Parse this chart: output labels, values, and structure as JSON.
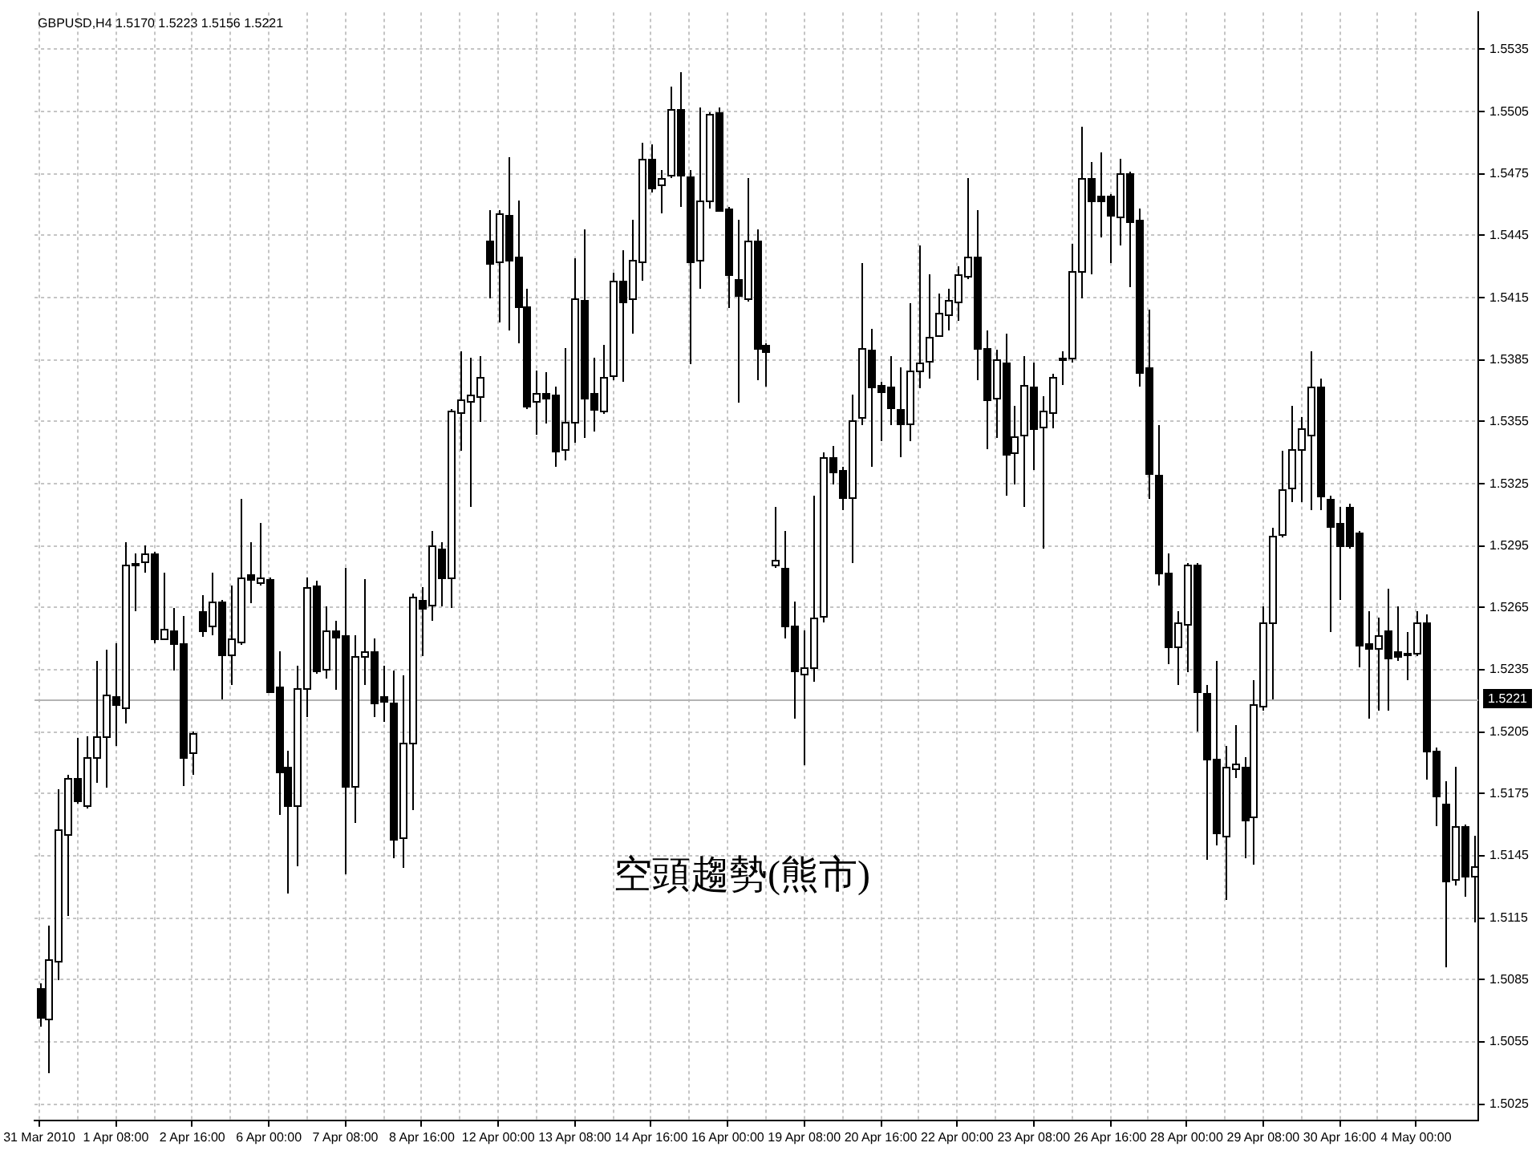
{
  "chart_data": {
    "type": "candlestick",
    "title": "GBPUSD,H4 1.5170 1.5223 1.5156 1.5221",
    "color": "#000000",
    "categories": [
      "31 Mar 2010",
      null,
      null,
      null,
      null,
      null,
      null,
      null,
      "1 Apr 08:00",
      null,
      null,
      null,
      null,
      null,
      null,
      null,
      "2 Apr 16:00",
      null,
      null,
      null,
      null,
      null,
      null,
      null,
      "6 Apr 00:00",
      null,
      null,
      null,
      null,
      null,
      null,
      null,
      "7 Apr 08:00",
      null,
      null,
      null,
      null,
      null,
      null,
      null,
      "8 Apr 16:00",
      null,
      null,
      null,
      null,
      null,
      null,
      null,
      "12 Apr 00:00",
      null,
      null,
      null,
      null,
      null,
      null,
      null,
      "13 Apr 08:00",
      null,
      null,
      null,
      null,
      null,
      null,
      null,
      "14 Apr 16:00",
      null,
      null,
      null,
      null,
      null,
      null,
      null,
      "16 Apr 00:00",
      null,
      null,
      null,
      null,
      null,
      null,
      null,
      "19 Apr 08:00",
      null,
      null,
      null,
      null,
      null,
      null,
      null,
      "20 Apr 16:00",
      null,
      null,
      null,
      null,
      null,
      null,
      null,
      "22 Apr 00:00",
      null,
      null,
      null,
      null,
      null,
      null,
      null,
      "23 Apr 08:00",
      null,
      null,
      null,
      null,
      null,
      null,
      null,
      "26 Apr 16:00",
      null,
      null,
      null,
      null,
      null,
      null,
      null,
      "28 Apr 00:00",
      null,
      null,
      null,
      null,
      null,
      null,
      null,
      "29 Apr 08:00",
      null,
      null,
      null,
      null,
      null,
      null,
      null,
      "30 Apr 16:00",
      null,
      null,
      null,
      null,
      null,
      null,
      null,
      "4 May 00:00",
      null,
      null,
      null,
      null,
      null,
      null
    ],
    "ohlc": [
      [
        1.5081,
        1.5083,
        1.5062,
        1.5067
      ],
      [
        1.5066,
        1.5111,
        1.504,
        1.5095
      ],
      [
        1.5094,
        1.5177,
        1.5085,
        1.5158
      ],
      [
        1.5156,
        1.5184,
        1.5116,
        1.5183
      ],
      [
        1.5183,
        1.5202,
        1.517,
        1.5172
      ],
      [
        1.517,
        1.5203,
        1.5168,
        1.5193
      ],
      [
        1.5193,
        1.5239,
        1.518,
        1.5203
      ],
      [
        1.5203,
        1.5245,
        1.5178,
        1.5223
      ],
      [
        1.5222,
        1.5248,
        1.5198,
        1.5218
      ],
      [
        1.5217,
        1.5297,
        1.5209,
        1.5286
      ],
      [
        1.5286,
        1.5291,
        1.5263,
        1.5287
      ],
      [
        1.5287,
        1.5295,
        1.5282,
        1.5291
      ],
      [
        1.5291,
        1.5292,
        1.5248,
        1.525
      ],
      [
        1.525,
        1.5282,
        1.5249,
        1.5255
      ],
      [
        1.5254,
        1.5265,
        1.5235,
        1.5248
      ],
      [
        1.5248,
        1.5261,
        1.5179,
        1.5193
      ],
      [
        1.5195,
        1.5205,
        1.5184,
        1.5204
      ],
      [
        1.5263,
        1.5271,
        1.5251,
        1.5254
      ],
      [
        1.5256,
        1.5282,
        1.5252,
        1.5268
      ],
      [
        1.5268,
        1.5269,
        1.5221,
        1.5242
      ],
      [
        1.5242,
        1.5276,
        1.5228,
        1.525
      ],
      [
        1.5249,
        1.5318,
        1.5247,
        1.528
      ],
      [
        1.5281,
        1.5297,
        1.5267,
        1.5279
      ],
      [
        1.5278,
        1.5306,
        1.5276,
        1.528
      ],
      [
        1.5279,
        1.528,
        1.5224,
        1.5225
      ],
      [
        1.5227,
        1.5244,
        1.5165,
        1.5186
      ],
      [
        1.5188,
        1.5196,
        1.5127,
        1.5169
      ],
      [
        1.5169,
        1.5237,
        1.514,
        1.5226
      ],
      [
        1.5226,
        1.528,
        1.5212,
        1.5275
      ],
      [
        1.5276,
        1.5278,
        1.5233,
        1.5235
      ],
      [
        1.5235,
        1.5266,
        1.5231,
        1.5254
      ],
      [
        1.5254,
        1.5259,
        1.5225,
        1.5251
      ],
      [
        1.5252,
        1.5284,
        1.5136,
        1.5179
      ],
      [
        1.5179,
        1.5252,
        1.5161,
        1.5242
      ],
      [
        1.5242,
        1.5279,
        1.5228,
        1.5244
      ],
      [
        1.5244,
        1.525,
        1.5212,
        1.5219
      ],
      [
        1.5222,
        1.5237,
        1.521,
        1.522
      ],
      [
        1.5219,
        1.5235,
        1.5144,
        1.5153
      ],
      [
        1.5154,
        1.5232,
        1.5139,
        1.52
      ],
      [
        1.5199,
        1.5272,
        1.5167,
        1.527
      ],
      [
        1.5269,
        1.5275,
        1.5242,
        1.5265
      ],
      [
        1.5266,
        1.5302,
        1.5259,
        1.5295
      ],
      [
        1.5294,
        1.5297,
        1.5266,
        1.528
      ],
      [
        1.5279,
        1.5361,
        1.5265,
        1.536
      ],
      [
        1.536,
        1.5389,
        1.5341,
        1.5366
      ],
      [
        1.5365,
        1.5386,
        1.5314,
        1.5368
      ],
      [
        1.5368,
        1.5387,
        1.5355,
        1.5377
      ],
      [
        1.5443,
        1.5457,
        1.5415,
        1.5432
      ],
      [
        1.5433,
        1.5457,
        1.5403,
        1.5456
      ],
      [
        1.5455,
        1.5483,
        1.5399,
        1.5433
      ],
      [
        1.5435,
        1.5462,
        1.5393,
        1.5411
      ],
      [
        1.5411,
        1.5419,
        1.5361,
        1.5363
      ],
      [
        1.5365,
        1.538,
        1.5349,
        1.5369
      ],
      [
        1.5369,
        1.5379,
        1.5354,
        1.5367
      ],
      [
        1.5368,
        1.5372,
        1.5333,
        1.5341
      ],
      [
        1.5342,
        1.5391,
        1.5336,
        1.5355
      ],
      [
        1.5355,
        1.5434,
        1.5345,
        1.5415
      ],
      [
        1.5414,
        1.5448,
        1.5347,
        1.5367
      ],
      [
        1.5369,
        1.5386,
        1.535,
        1.5361
      ],
      [
        1.5361,
        1.5392,
        1.5359,
        1.5377
      ],
      [
        1.5377,
        1.5427,
        1.5375,
        1.5423
      ],
      [
        1.5423,
        1.5438,
        1.5374,
        1.5413
      ],
      [
        1.5414,
        1.5453,
        1.5398,
        1.5433
      ],
      [
        1.5432,
        1.549,
        1.5423,
        1.5482
      ],
      [
        1.5482,
        1.5489,
        1.5466,
        1.5468
      ],
      [
        1.547,
        1.5477,
        1.5456,
        1.5473
      ],
      [
        1.5474,
        1.5517,
        1.5473,
        1.5506
      ],
      [
        1.5506,
        1.5524,
        1.5459,
        1.5474
      ],
      [
        1.5474,
        1.5477,
        1.5383,
        1.5433
      ],
      [
        1.5433,
        1.5507,
        1.5419,
        1.5462
      ],
      [
        1.5462,
        1.5505,
        1.5458,
        1.5504
      ],
      [
        1.5505,
        1.5507,
        1.5457,
        1.5458
      ],
      [
        1.5458,
        1.5459,
        1.541,
        1.5426
      ],
      [
        1.5424,
        1.5453,
        1.5364,
        1.5416
      ],
      [
        1.5415,
        1.5473,
        1.5413,
        1.5443
      ],
      [
        1.5443,
        1.5448,
        1.5375,
        1.5391
      ],
      [
        1.5392,
        1.5393,
        1.5372,
        1.5389
      ],
      [
        1.5286,
        1.5314,
        1.5284,
        1.5288
      ],
      [
        1.5284,
        1.5302,
        1.525,
        1.5256
      ],
      [
        1.5256,
        1.5268,
        1.5211,
        1.5234
      ],
      [
        1.5233,
        1.5254,
        1.5189,
        1.5236
      ],
      [
        1.5236,
        1.5319,
        1.5229,
        1.526
      ],
      [
        1.5261,
        1.534,
        1.5258,
        1.5338
      ],
      [
        1.5338,
        1.5343,
        1.5325,
        1.5331
      ],
      [
        1.5332,
        1.5333,
        1.5312,
        1.5319
      ],
      [
        1.5319,
        1.5368,
        1.5287,
        1.5356
      ],
      [
        1.5358,
        1.5432,
        1.5353,
        1.5391
      ],
      [
        1.539,
        1.54,
        1.5333,
        1.5372
      ],
      [
        1.5373,
        1.5374,
        1.5346,
        1.537
      ],
      [
        1.5372,
        1.5387,
        1.5353,
        1.5362
      ],
      [
        1.5361,
        1.5381,
        1.5338,
        1.5354
      ],
      [
        1.5354,
        1.5412,
        1.5346,
        1.538
      ],
      [
        1.538,
        1.544,
        1.5371,
        1.5384
      ],
      [
        1.5384,
        1.5426,
        1.5376,
        1.5396
      ],
      [
        1.5397,
        1.5417,
        1.5396,
        1.5408
      ],
      [
        1.5407,
        1.5419,
        1.5399,
        1.5414
      ],
      [
        1.5413,
        1.543,
        1.5404,
        1.5426
      ],
      [
        1.5426,
        1.5473,
        1.5424,
        1.5435
      ],
      [
        1.5435,
        1.5457,
        1.5375,
        1.5391
      ],
      [
        1.5391,
        1.5399,
        1.5342,
        1.5366
      ],
      [
        1.5366,
        1.539,
        1.5347,
        1.5385
      ],
      [
        1.5384,
        1.5398,
        1.5319,
        1.534
      ],
      [
        1.534,
        1.5363,
        1.5325,
        1.5348
      ],
      [
        1.5349,
        1.5387,
        1.5314,
        1.5373
      ],
      [
        1.5372,
        1.5384,
        1.5332,
        1.5352
      ],
      [
        1.5352,
        1.5367,
        1.5294,
        1.536
      ],
      [
        1.536,
        1.5378,
        1.5352,
        1.5377
      ],
      [
        1.5386,
        1.5389,
        1.5373,
        1.5385
      ],
      [
        1.5386,
        1.5441,
        1.5384,
        1.5428
      ],
      [
        1.5428,
        1.5498,
        1.5415,
        1.5473
      ],
      [
        1.5473,
        1.5481,
        1.5426,
        1.5462
      ],
      [
        1.5464,
        1.5485,
        1.5444,
        1.5462
      ],
      [
        1.5464,
        1.5465,
        1.5432,
        1.5455
      ],
      [
        1.5454,
        1.5482,
        1.544,
        1.5475
      ],
      [
        1.5475,
        1.5476,
        1.542,
        1.5452
      ],
      [
        1.5453,
        1.5458,
        1.5372,
        1.5379
      ],
      [
        1.5381,
        1.5409,
        1.5318,
        1.533
      ],
      [
        1.5329,
        1.5353,
        1.5276,
        1.5282
      ],
      [
        1.5282,
        1.5291,
        1.5238,
        1.5246
      ],
      [
        1.5246,
        1.5263,
        1.5228,
        1.5258
      ],
      [
        1.5257,
        1.5287,
        1.5234,
        1.5286
      ],
      [
        1.5286,
        1.5287,
        1.5205,
        1.5225
      ],
      [
        1.5224,
        1.5228,
        1.5143,
        1.5192
      ],
      [
        1.5192,
        1.5239,
        1.515,
        1.5156
      ],
      [
        1.5155,
        1.5198,
        1.5124,
        1.5188
      ],
      [
        1.5188,
        1.5208,
        1.5183,
        1.519
      ],
      [
        1.5188,
        1.5193,
        1.5144,
        1.5162
      ],
      [
        1.5164,
        1.523,
        1.5141,
        1.5218
      ],
      [
        1.5218,
        1.5266,
        1.5215,
        1.5258
      ],
      [
        1.5258,
        1.5304,
        1.5221,
        1.53
      ],
      [
        1.53,
        1.5341,
        1.5299,
        1.5322
      ],
      [
        1.5323,
        1.5363,
        1.5316,
        1.5342
      ],
      [
        1.5342,
        1.5357,
        1.5316,
        1.5352
      ],
      [
        1.5349,
        1.5389,
        1.5312,
        1.5372
      ],
      [
        1.5372,
        1.5376,
        1.5312,
        1.5319
      ],
      [
        1.5318,
        1.5319,
        1.5253,
        1.5305
      ],
      [
        1.5306,
        1.5314,
        1.5269,
        1.5295
      ],
      [
        1.5314,
        1.5315,
        1.5294,
        1.5295
      ],
      [
        1.5301,
        1.5302,
        1.5236,
        1.5247
      ],
      [
        1.5248,
        1.5263,
        1.5211,
        1.5246
      ],
      [
        1.5246,
        1.526,
        1.5215,
        1.5252
      ],
      [
        1.5254,
        1.5274,
        1.5215,
        1.5241
      ],
      [
        1.5244,
        1.5266,
        1.5239,
        1.5242
      ],
      [
        1.5243,
        1.5253,
        1.523,
        1.5242
      ],
      [
        1.5243,
        1.5263,
        1.5242,
        1.5258
      ],
      [
        1.5258,
        1.5262,
        1.5182,
        1.5196
      ],
      [
        1.5196,
        1.5197,
        1.5159,
        1.5174
      ],
      [
        1.517,
        1.5181,
        1.5091,
        1.5133
      ],
      [
        1.5133,
        1.5188,
        1.5131,
        1.5159
      ],
      [
        1.5159,
        1.516,
        1.5125,
        1.5135
      ],
      [
        1.5135,
        1.5155,
        1.5113,
        1.514
      ]
    ],
    "ylim": [
      1.5017,
      1.5553
    ],
    "yticks": [
      1.5025,
      1.5055,
      1.5085,
      1.5115,
      1.5145,
      1.5175,
      1.5205,
      1.5235,
      1.5265,
      1.5295,
      1.5325,
      1.5355,
      1.5385,
      1.5415,
      1.5445,
      1.5475,
      1.5505,
      1.5535
    ],
    "ref_lines": [
      {
        "axis": "y",
        "value": 1.5221,
        "label": "1.5221",
        "color": "#b4b4b4"
      }
    ],
    "annotations": [
      "空頭趨勢(熊市)"
    ],
    "grid": true
  }
}
